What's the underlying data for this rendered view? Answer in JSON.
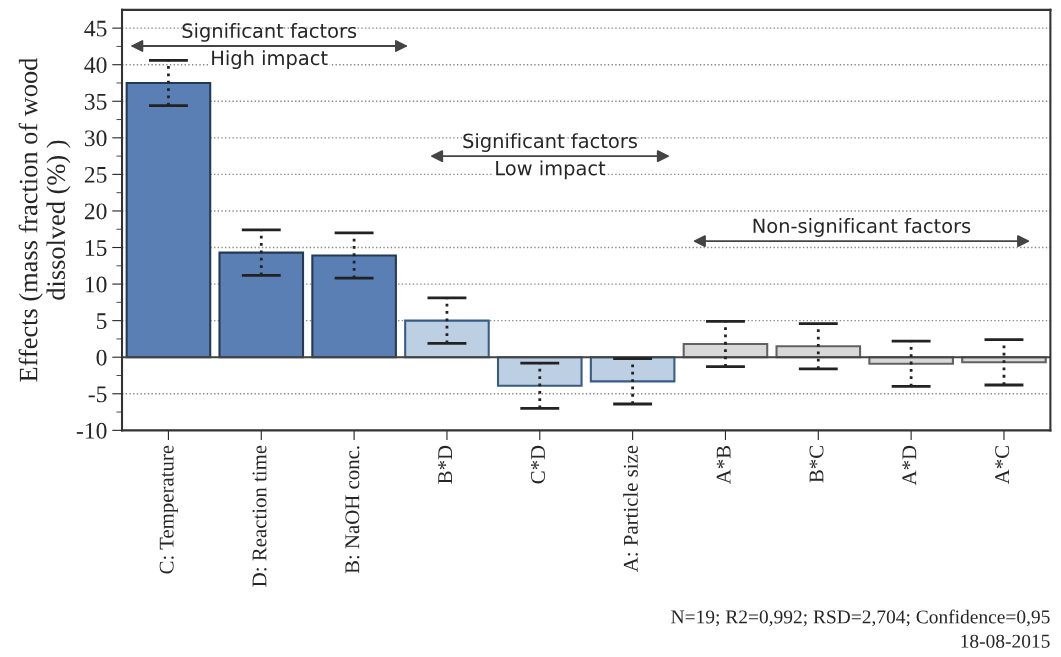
{
  "chart_data": {
    "type": "bar",
    "categories": [
      "C: Temperature",
      "D: Reaction time",
      "B: NaOH conc.",
      "B*D",
      "C*D",
      "A: Particle size",
      "A*B",
      "B*C",
      "A*D",
      "A*C"
    ],
    "values": [
      37.5,
      14.3,
      13.9,
      5.0,
      -3.9,
      -3.3,
      1.8,
      1.5,
      -0.9,
      -0.7
    ],
    "errors": [
      3.1,
      3.1,
      3.1,
      3.1,
      3.1,
      3.1,
      3.1,
      3.1,
      3.1,
      3.1
    ],
    "colors": [
      "#5a7fb5",
      "#5a7fb5",
      "#5a7fb5",
      "#bccfe3",
      "#bccfe3",
      "#bccfe3",
      "#d8d8d8",
      "#d8d8d8",
      "#d8d8d8",
      "#d8d8d8"
    ],
    "ylabel": "Effects (mass fraction of wood\ndissolved (%) )",
    "ylim": [
      -10,
      47.5
    ],
    "yticks": [
      -10,
      -5,
      0,
      5,
      10,
      15,
      20,
      25,
      30,
      35,
      40,
      45
    ],
    "grid": "y",
    "annotations": [
      "Significant factors\nHigh impact",
      "Significant factors\nLow impact",
      "Non-significant factors",
      "N=19; R2=0,992; RSD=2,704; Confidence=0,95",
      "18-08-2015"
    ]
  }
}
